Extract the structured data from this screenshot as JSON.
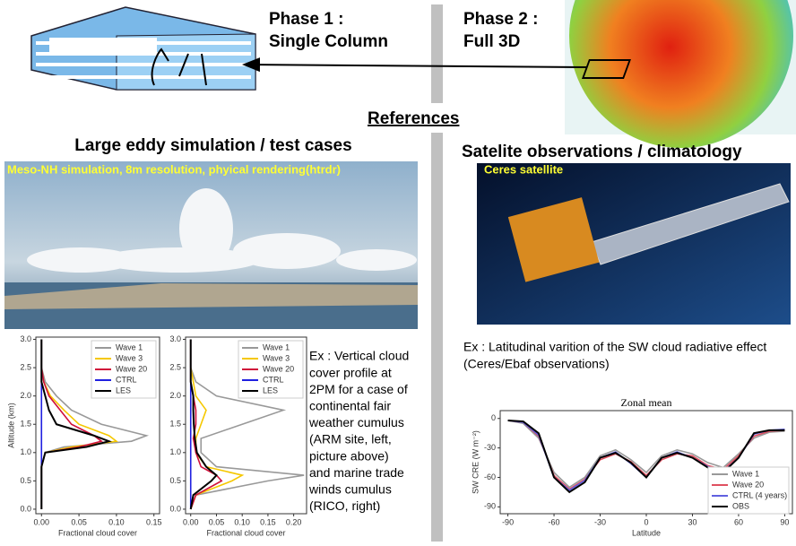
{
  "slide": {
    "phase1": [
      "Phase 1 :",
      "Single Column"
    ],
    "phase2": [
      "Phase 2 :",
      "Full 3D"
    ],
    "references": "References",
    "left_heading": "Large eddy simulation / test cases",
    "les_caption": "Meso-NH simulation, 8m resolution, phyical rendering(htrdr)",
    "right_heading": "Satelite observations / climatology",
    "sat_caption": "Ceres satellite",
    "left_note": [
      "Ex : Vertical cloud",
      "cover profile at",
      "2PM  for a case of",
      "continental fair",
      "weather cumulus",
      "(ARM site, left,",
      "picture above)",
      "and marine trade",
      "winds cumulus",
      "(RICO, right)"
    ],
    "right_note": [
      "Ex : Latitudinal varition of the SW cloud radiative effect",
      "(Ceres/Ebaf observations)"
    ]
  },
  "chart_data": [
    {
      "type": "line",
      "xlabel": "Fractional cloud cover",
      "ylabel": "Altitude (km)",
      "legend": "upper right",
      "altitudes": [
        0,
        0.25,
        0.5,
        0.75,
        1.0,
        1.1,
        1.2,
        1.3,
        1.5,
        1.75,
        2.0,
        2.25,
        2.5,
        3.0
      ],
      "series": [
        {
          "name": "Wave 1",
          "color": "#999999",
          "values": [
            0,
            0,
            0,
            0,
            0.005,
            0.03,
            0.12,
            0.14,
            0.08,
            0.04,
            0.02,
            0.005,
            0,
            0
          ]
        },
        {
          "name": "Wave 3",
          "color": "#f5c800",
          "values": [
            0,
            0,
            0,
            0,
            0.005,
            0.04,
            0.1,
            0.09,
            0.05,
            0.03,
            0.012,
            0.003,
            0,
            0
          ]
        },
        {
          "name": "Wave 20",
          "color": "#d0103a",
          "values": [
            0,
            0,
            0,
            0,
            0.005,
            0.05,
            0.08,
            0.07,
            0.04,
            0.025,
            0.01,
            0.003,
            0,
            0
          ]
        },
        {
          "name": "CTRL",
          "color": "#2020e0",
          "values": [
            0,
            0,
            0,
            0,
            0,
            0,
            0,
            0,
            0,
            0,
            0,
            0,
            0,
            0
          ]
        },
        {
          "name": "LES",
          "color": "#000000",
          "values": [
            0,
            0,
            0,
            0,
            0.005,
            0.06,
            0.09,
            0.07,
            0.02,
            0.01,
            0.005,
            0,
            0,
            0
          ]
        }
      ],
      "xlim": [
        -0.0075,
        0.1575
      ],
      "ylim": [
        -0.08,
        3.04
      ],
      "xticks": [
        {
          "value": 0,
          "label": "0.00"
        },
        0.05,
        {
          "value": 0.1,
          "label": "0.10"
        },
        0.15
      ],
      "yticks": [
        {
          "value": 0,
          "label": "0.0"
        },
        0.5,
        {
          "value": 1,
          "label": "1.0"
        },
        1.5,
        {
          "value": 2,
          "label": "2.0"
        },
        2.5,
        {
          "value": 3,
          "label": "3.0"
        }
      ]
    },
    {
      "type": "line",
      "xlabel": "Fractional cloud cover",
      "legend": "upper right",
      "altitudes": [
        0,
        0.25,
        0.5,
        0.6,
        0.75,
        1.0,
        1.25,
        1.5,
        1.75,
        2.0,
        2.25,
        2.5,
        3.0
      ],
      "series": [
        {
          "name": "Wave 1",
          "color": "#999999",
          "values": [
            0,
            0.01,
            0.15,
            0.22,
            0.05,
            0.02,
            0.02,
            0.1,
            0.18,
            0.05,
            0.01,
            0,
            0
          ]
        },
        {
          "name": "Wave 3",
          "color": "#f5c800",
          "values": [
            0,
            0.01,
            0.08,
            0.1,
            0.03,
            0.01,
            0.01,
            0.02,
            0.03,
            0.01,
            0.005,
            0,
            0
          ]
        },
        {
          "name": "Wave 20",
          "color": "#d0103a",
          "values": [
            0,
            0.01,
            0.06,
            0.05,
            0.02,
            0.01,
            0.005,
            0.01,
            0.01,
            0.005,
            0,
            0,
            0
          ]
        },
        {
          "name": "CTRL",
          "color": "#2020e0",
          "values": [
            0,
            0,
            0,
            0,
            0,
            0,
            0,
            0,
            0,
            0,
            0,
            0,
            0
          ]
        },
        {
          "name": "LES",
          "color": "#000000",
          "values": [
            0,
            0.005,
            0.04,
            0.05,
            0.03,
            0.012,
            0.008,
            0.006,
            0.005,
            0.005,
            0,
            0,
            0
          ]
        }
      ],
      "xlim": [
        -0.01,
        0.225
      ],
      "ylim": [
        -0.08,
        3.04
      ],
      "xticks": [
        {
          "value": 0,
          "label": "0.00"
        },
        0.05,
        {
          "value": 0.1,
          "label": "0.10"
        },
        0.15,
        {
          "value": 0.2,
          "label": "0.20"
        }
      ],
      "yticks": [
        {
          "value": 0,
          "label": "0.0"
        },
        0.5,
        {
          "value": 1,
          "label": "1.0"
        },
        1.5,
        {
          "value": 2,
          "label": "2.0"
        },
        2.5,
        {
          "value": 3,
          "label": "3.0"
        }
      ]
    },
    {
      "type": "line",
      "title": "Zonal mean",
      "xlabel": "Latitude",
      "ylabel": "SW CRE (W m⁻²)",
      "legend": "lower right",
      "x": [
        -90,
        -80,
        -70,
        -60,
        -50,
        -40,
        -30,
        -20,
        -10,
        0,
        10,
        20,
        30,
        40,
        50,
        60,
        70,
        80,
        90
      ],
      "series": [
        {
          "name": "Wave 1",
          "color": "#999999",
          "values": [
            -2,
            -5,
            -20,
            -55,
            -70,
            -60,
            -38,
            -32,
            -42,
            -55,
            -38,
            -32,
            -36,
            -45,
            -50,
            -36,
            -20,
            -14,
            -13
          ]
        },
        {
          "name": "Wave 20",
          "color": "#e05060",
          "values": [
            -2,
            -4,
            -18,
            -58,
            -72,
            -62,
            -42,
            -36,
            -44,
            -58,
            -42,
            -36,
            -38,
            -48,
            -52,
            -38,
            -18,
            -13,
            -12
          ]
        },
        {
          "name": "CTRL (4 years)",
          "color": "#6060e0",
          "values": [
            -2,
            -4,
            -17,
            -60,
            -73,
            -63,
            -40,
            -34,
            -46,
            -60,
            -40,
            -34,
            -40,
            -49,
            -54,
            -40,
            -16,
            -12,
            -11
          ]
        },
        {
          "name": "OBS",
          "color": "#000000",
          "values": [
            -2,
            -3,
            -15,
            -60,
            -75,
            -65,
            -40,
            -35,
            -45,
            -60,
            -40,
            -35,
            -40,
            -50,
            -55,
            -40,
            -15,
            -12,
            -12
          ]
        }
      ],
      "xlim": [
        -95,
        95
      ],
      "ylim": [
        -97,
        8
      ],
      "xticks": [
        -90,
        -60,
        -30,
        0,
        30,
        60,
        90
      ],
      "yticks": [
        0,
        -30,
        -60,
        -90
      ]
    }
  ]
}
